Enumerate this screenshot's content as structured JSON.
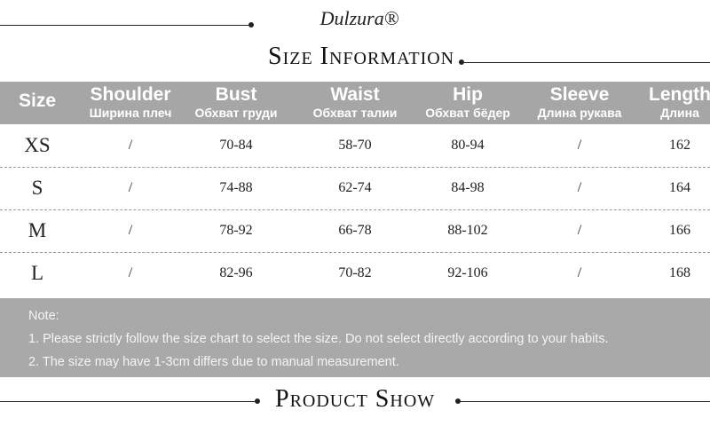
{
  "brand": "Dulzura®",
  "title": "Size Information",
  "table": {
    "headers": [
      {
        "en": "Size"
      },
      {
        "en": "Shoulder",
        "ru": "Ширина плеч"
      },
      {
        "en": "Bust",
        "ru": "Обхват груди"
      },
      {
        "en": "Waist",
        "ru": "Обхват талии"
      },
      {
        "en": "Hip",
        "ru": "Обхват бёдер"
      },
      {
        "en": "Sleeve",
        "ru": "Длина рукава"
      },
      {
        "en": "Length",
        "ru": "Длина"
      }
    ],
    "rows": [
      [
        "XS",
        "/",
        "70-84",
        "58-70",
        "80-94",
        "/",
        162
      ],
      [
        "S",
        "/",
        "74-88",
        "62-74",
        "84-98",
        "/",
        164
      ],
      [
        "M",
        "/",
        "78-92",
        "66-78",
        "88-102",
        "/",
        166
      ],
      [
        "L",
        "/",
        "82-96",
        "70-82",
        "92-106",
        "/",
        168
      ]
    ]
  },
  "note": {
    "heading": "Note:",
    "lines": [
      "1. Please strictly follow the size chart to select the size. Do not select directly according to your habits.",
      "2. The size may have 1-3cm differs due to manual measurement."
    ]
  },
  "footer": "Product Show"
}
